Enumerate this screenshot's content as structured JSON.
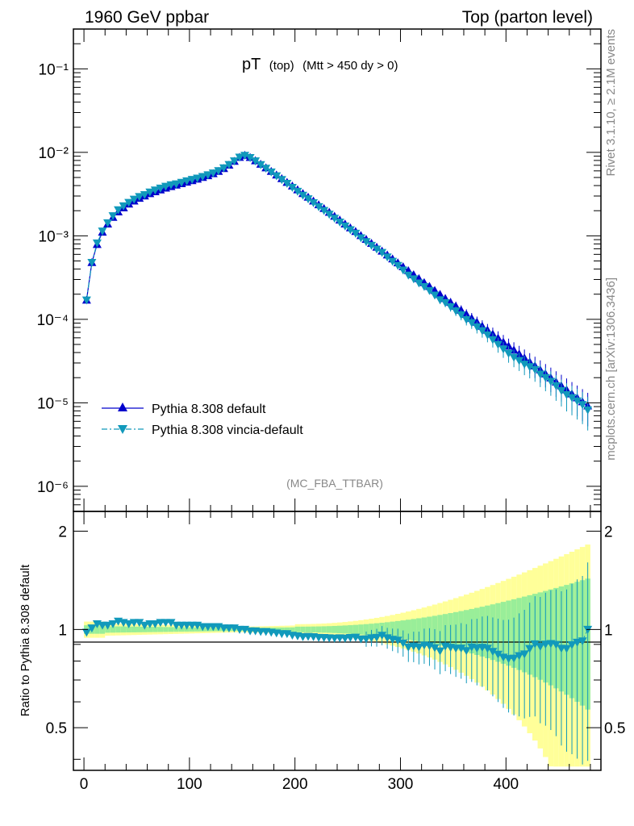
{
  "header": {
    "left": "1960 GeV ppbar",
    "right": "Top (parton level)"
  },
  "side": {
    "rivet": "Rivet 3.1.10, ≥ 2.1M events",
    "mcplots": "mcplots.cern.ch [arXiv:1306.3436]"
  },
  "plot_title": {
    "main": "pT",
    "sub": "(top)",
    "cut": "(Mtt > 450 dy > 0)"
  },
  "analysis_label": "(MC_FBA_TTBAR)",
  "ratio_ylabel": "Ratio to Pythia 8.308 default",
  "colors": {
    "default": "#0000cc",
    "vincia": "#1199bb",
    "band_yellow": "#ffff99",
    "band_green": "#99ee99"
  },
  "chart_data": [
    {
      "type": "scatter",
      "panel": "main",
      "yscale": "log",
      "xlim": [
        -10,
        490
      ],
      "ylim": [
        5e-07,
        0.3
      ],
      "ytick_labels": [
        "10⁻⁶",
        "10⁻⁵",
        "10⁻⁴",
        "10⁻³",
        "10⁻²",
        "10⁻¹"
      ],
      "legend_position": "lower-left",
      "x": [
        2.5,
        7.5,
        12.5,
        17.5,
        22.5,
        27.5,
        32.5,
        37.5,
        42.5,
        47.5,
        52.5,
        57.5,
        62.5,
        67.5,
        72.5,
        77.5,
        82.5,
        87.5,
        92.5,
        97.5,
        102.5,
        107.5,
        112.5,
        117.5,
        122.5,
        127.5,
        132.5,
        137.5,
        142.5,
        147.5,
        152.5,
        157.5,
        162.5,
        167.5,
        172.5,
        177.5,
        182.5,
        187.5,
        192.5,
        197.5,
        202.5,
        207.5,
        212.5,
        217.5,
        222.5,
        227.5,
        232.5,
        237.5,
        242.5,
        247.5,
        252.5,
        257.5,
        262.5,
        267.5,
        272.5,
        277.5,
        282.5,
        287.5,
        292.5,
        297.5,
        302.5,
        307.5,
        312.5,
        317.5,
        322.5,
        327.5,
        332.5,
        337.5,
        342.5,
        347.5,
        352.5,
        357.5,
        362.5,
        367.5,
        372.5,
        377.5,
        382.5,
        387.5,
        392.5,
        397.5,
        402.5,
        407.5,
        412.5,
        417.5,
        422.5,
        427.5,
        432.5,
        437.5,
        442.5,
        447.5,
        452.5,
        457.5,
        462.5,
        467.5,
        472.5,
        477.5
      ],
      "series": [
        {
          "name": "Pythia 8.308 default",
          "marker": "triangle-up",
          "linestyle": "solid",
          "values": [
            0.00017,
            0.00048,
            0.00079,
            0.00111,
            0.00139,
            0.00167,
            0.00194,
            0.00217,
            0.00241,
            0.00262,
            0.00282,
            0.00301,
            0.00321,
            0.00338,
            0.00356,
            0.00374,
            0.0039,
            0.00406,
            0.00423,
            0.00441,
            0.00459,
            0.00479,
            0.00502,
            0.00526,
            0.00556,
            0.00593,
            0.00642,
            0.00705,
            0.00783,
            0.00874,
            0.00924,
            0.0087,
            0.00795,
            0.00722,
            0.00654,
            0.00593,
            0.00536,
            0.00485,
            0.00438,
            0.00396,
            0.00357,
            0.00322,
            0.00291,
            0.00262,
            0.00236,
            0.00213,
            0.00192,
            0.00172,
            0.00155,
            0.00139,
            0.00125,
            0.00113,
            0.00101,
            0.000909,
            0.000815,
            0.000733,
            0.000658,
            0.000591,
            0.000531,
            0.000476,
            0.000427,
            0.000383,
            0.000343,
            0.000308,
            0.000276,
            0.000248,
            0.000222,
            0.000199,
            0.000178,
            0.00016,
            0.000144,
            0.000129,
            0.000115,
            0.000103,
            9.25e-05,
            8.29e-05,
            7.43e-05,
            6.66e-05,
            5.96e-05,
            5.35e-05,
            4.79e-05,
            4.29e-05,
            3.85e-05,
            3.45e-05,
            3.09e-05,
            2.77e-05,
            2.48e-05,
            2.22e-05,
            1.99e-05,
            1.78e-05,
            1.6e-05,
            1.43e-05,
            1.28e-05,
            1.15e-05,
            1.03e-05,
            9.2e-06
          ]
        },
        {
          "name": "Pythia 8.308 vincia-default",
          "marker": "triangle-down",
          "linestyle": "dash-dot",
          "values": [
            0.00017,
            0.00048,
            0.00082,
            0.00114,
            0.00143,
            0.00174,
            0.00205,
            0.00228,
            0.00251,
            0.00274,
            0.00295,
            0.00311,
            0.00334,
            0.00353,
            0.00372,
            0.00391,
            0.00408,
            0.00418,
            0.00436,
            0.00455,
            0.00473,
            0.00491,
            0.00513,
            0.00537,
            0.00565,
            0.00602,
            0.00651,
            0.00713,
            0.00788,
            0.00874,
            0.0092,
            0.00864,
            0.00788,
            0.00711,
            0.00644,
            0.00581,
            0.00523,
            0.00471,
            0.00424,
            0.0038,
            0.00341,
            0.00306,
            0.00277,
            0.00249,
            0.00223,
            0.00201,
            0.00181,
            0.00162,
            0.00146,
            0.00131,
            0.00118,
            0.00107,
            0.000945,
            0.00085,
            0.000768,
            0.000693,
            0.000631,
            0.000557,
            0.000495,
            0.000441,
            0.000388,
            0.000338,
            0.000305,
            0.000272,
            0.000247,
            0.000221,
            0.000195,
            0.000171,
            0.000158,
            0.000141,
            0.000126,
            0.000113,
            9.9e-05,
            9.1e-05,
            8.1e-05,
            7.3e-05,
            6.5e-05,
            5.7e-05,
            5e-05,
            4.4e-05,
            3.9e-05,
            3.5e-05,
            3.2e-05,
            2.9e-05,
            2.7e-05,
            2.5e-05,
            2.2e-05,
            2e-05,
            1.8e-05,
            1.6e-05,
            1.4e-05,
            1.25e-05,
            1.15e-05,
            1.05e-05,
            9.5e-06,
            8.2e-06
          ]
        }
      ]
    },
    {
      "type": "scatter",
      "panel": "ratio",
      "xlim": [
        -10,
        490
      ],
      "ylim": [
        0.37,
        2.3
      ],
      "yticks": [
        0.5,
        1,
        2
      ],
      "xticks": [
        0,
        100,
        200,
        300,
        400
      ],
      "ylabel": "Ratio to Pythia 8.308 default",
      "x": [
        2.5,
        7.5,
        12.5,
        17.5,
        22.5,
        27.5,
        32.5,
        37.5,
        42.5,
        47.5,
        52.5,
        57.5,
        62.5,
        67.5,
        72.5,
        77.5,
        82.5,
        87.5,
        92.5,
        97.5,
        102.5,
        107.5,
        112.5,
        117.5,
        122.5,
        127.5,
        132.5,
        137.5,
        142.5,
        147.5,
        152.5,
        157.5,
        162.5,
        167.5,
        172.5,
        177.5,
        182.5,
        187.5,
        192.5,
        197.5,
        202.5,
        207.5,
        212.5,
        217.5,
        222.5,
        227.5,
        232.5,
        237.5,
        242.5,
        247.5,
        252.5,
        257.5,
        262.5,
        267.5,
        272.5,
        277.5,
        282.5,
        287.5,
        292.5,
        297.5,
        302.5,
        307.5,
        312.5,
        317.5,
        322.5,
        327.5,
        332.5,
        337.5,
        342.5,
        347.5,
        352.5,
        357.5,
        362.5,
        367.5,
        372.5,
        377.5,
        382.5,
        387.5,
        392.5,
        397.5,
        402.5,
        407.5,
        412.5,
        417.5,
        422.5,
        427.5,
        432.5,
        437.5,
        442.5,
        447.5,
        452.5,
        457.5,
        462.5,
        467.5,
        472.5,
        477.5
      ],
      "series": [
        {
          "name": "Pythia 8.308 vincia-default",
          "values": [
            0.98,
            1.01,
            1.04,
            1.03,
            1.03,
            1.04,
            1.06,
            1.05,
            1.04,
            1.05,
            1.05,
            1.03,
            1.04,
            1.04,
            1.05,
            1.05,
            1.05,
            1.03,
            1.03,
            1.03,
            1.03,
            1.03,
            1.02,
            1.02,
            1.02,
            1.02,
            1.01,
            1.01,
            1.01,
            1.0,
            1.0,
            0.99,
            0.99,
            0.985,
            0.985,
            0.98,
            0.975,
            0.97,
            0.97,
            0.96,
            0.955,
            0.95,
            0.952,
            0.95,
            0.945,
            0.944,
            0.942,
            0.94,
            0.942,
            0.94,
            0.944,
            0.946,
            0.935,
            0.935,
            0.942,
            0.945,
            0.959,
            0.942,
            0.932,
            0.926,
            0.909,
            0.883,
            0.889,
            0.883,
            0.895,
            0.891,
            0.878,
            0.859,
            0.888,
            0.881,
            0.875,
            0.876,
            0.861,
            0.883,
            0.876,
            0.881,
            0.875,
            0.856,
            0.839,
            0.822,
            0.814,
            0.816,
            0.831,
            0.841,
            0.874,
            0.903,
            0.887,
            0.901,
            0.905,
            0.899,
            0.875,
            0.874,
            0.898,
            0.913,
            0.922,
            1.0
          ]
        }
      ]
    }
  ]
}
